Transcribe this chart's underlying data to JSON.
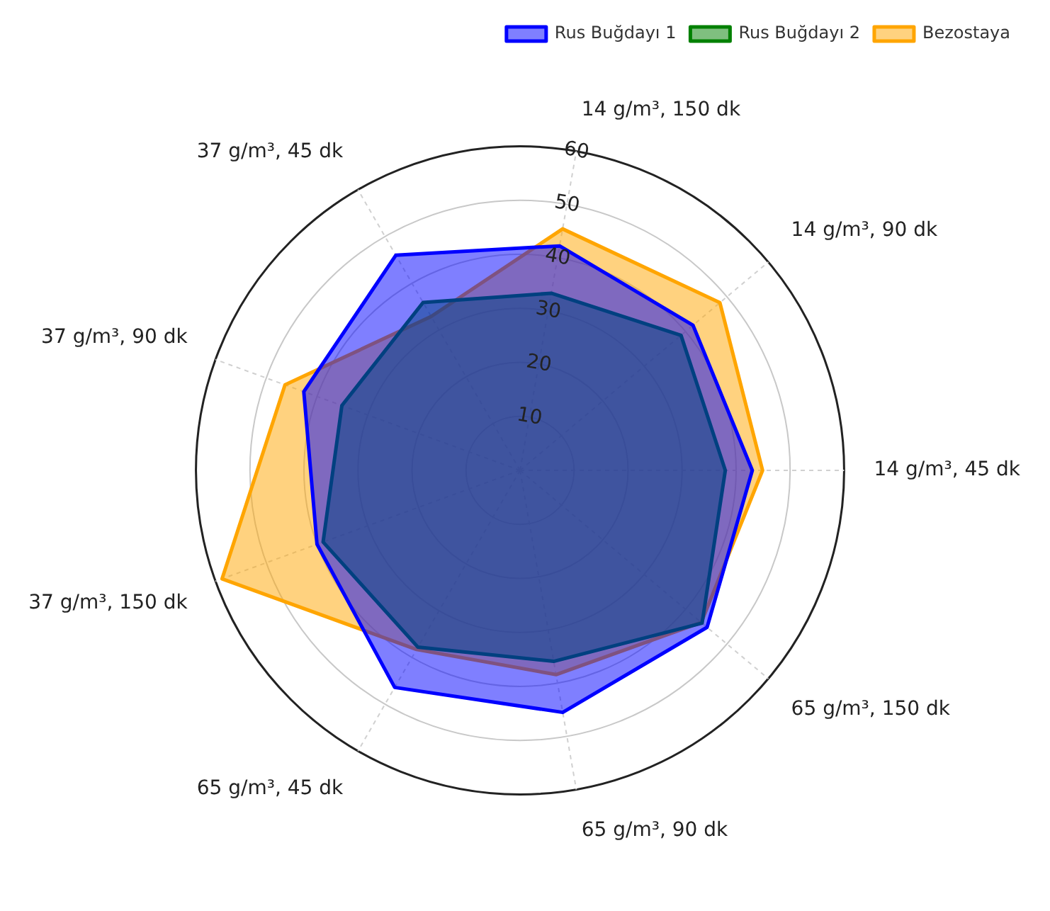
{
  "chart_data": {
    "type": "radar",
    "categories": [
      "14 g/m³, 150 dk",
      "14 g/m³, 90 dk",
      "14 g/m³, 45 dk",
      "65 g/m³, 150 dk",
      "65 g/m³, 90 dk",
      "65 g/m³, 45 dk",
      "37 g/m³, 150 dk",
      "37 g/m³, 90 dk",
      "37 g/m³, 45 dk"
    ],
    "series": [
      {
        "name": "Rus Buğdayı 1",
        "color": "#0000ff",
        "values": [
          42.2,
          41.8,
          43,
          45.2,
          45.5,
          46.4,
          40,
          42.6,
          46
        ]
      },
      {
        "name": "Rus Buğdayı 2",
        "color": "#008000",
        "values": [
          33.3,
          38.9,
          38,
          44,
          35.9,
          37.8,
          38.8,
          35.1,
          35.9
        ]
      },
      {
        "name": "Bezostaya",
        "color": "#ffa500",
        "values": [
          45.4,
          48.3,
          44.9,
          43.8,
          38.4,
          38.3,
          58.7,
          46.3,
          32.9
        ]
      }
    ],
    "ylim": [
      0,
      60
    ],
    "yticks": [
      10,
      20,
      30,
      40,
      50,
      60
    ],
    "grid": true,
    "legend": "top right",
    "marker": "none",
    "line_style": "solid"
  }
}
